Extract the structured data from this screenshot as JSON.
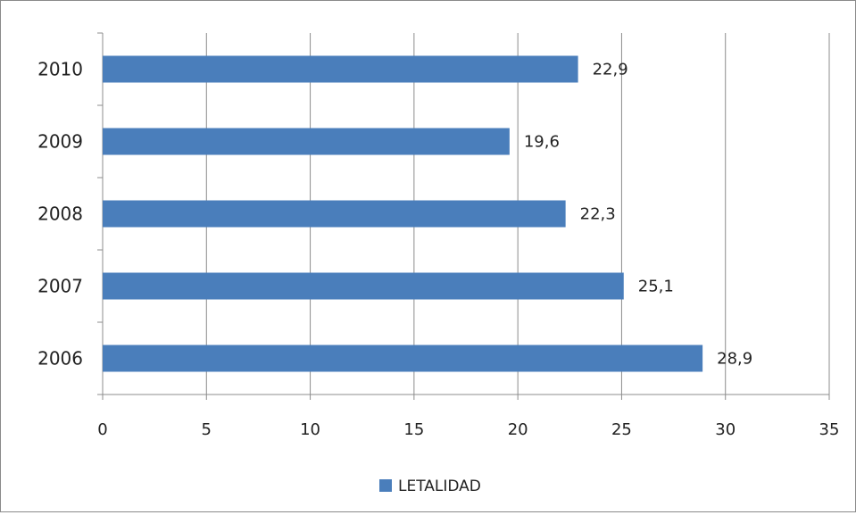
{
  "chart_data": {
    "type": "bar",
    "orientation": "horizontal",
    "categories": [
      "2010",
      "2009",
      "2008",
      "2007",
      "2006"
    ],
    "series": [
      {
        "name": "LETALIDAD",
        "values": [
          22.9,
          19.6,
          22.3,
          25.1,
          28.9
        ],
        "value_labels": [
          "22,9",
          "19,6",
          "22,3",
          "25,1",
          "28,9"
        ],
        "color": "#4a7ebb"
      }
    ],
    "xlim": [
      0,
      35
    ],
    "x_ticks": [
      "0",
      "5",
      "10",
      "15",
      "20",
      "25",
      "30",
      "35"
    ],
    "grid": true,
    "legend_position": "bottom"
  }
}
